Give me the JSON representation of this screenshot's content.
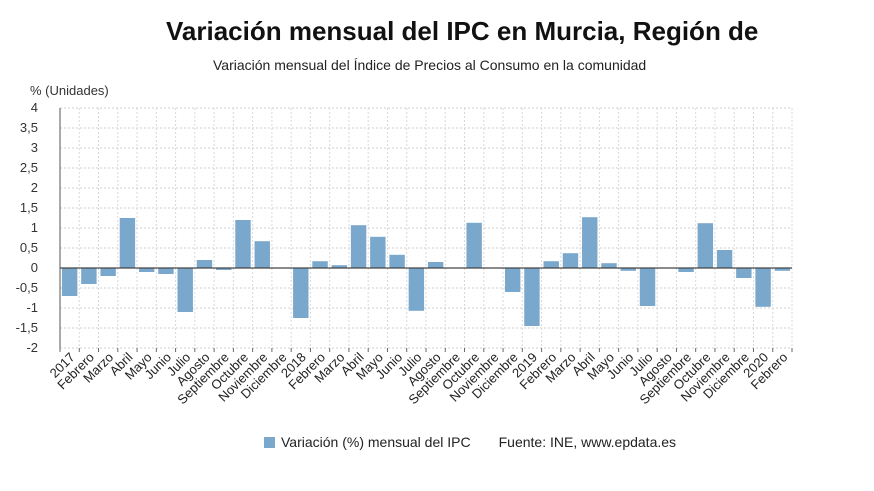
{
  "title": "Variación mensual del IPC en Murcia, Región de",
  "subtitle": "Variación mensual del Índice de Precios al Consumo en la comunidad",
  "source": "Fuente: INE, www.epdata.es",
  "chart_data": {
    "type": "bar",
    "ylabel": "% (Unidades)",
    "ylim": [
      -2,
      4
    ],
    "yticks": [
      {
        "value": 4,
        "label": "4"
      },
      {
        "value": 3.5,
        "label": "3,5"
      },
      {
        "value": 3,
        "label": "3"
      },
      {
        "value": 2.5,
        "label": "2,5"
      },
      {
        "value": 2,
        "label": "2"
      },
      {
        "value": 1.5,
        "label": "1,5"
      },
      {
        "value": 1,
        "label": "1"
      },
      {
        "value": 0.5,
        "label": "0,5"
      },
      {
        "value": 0,
        "label": "0"
      },
      {
        "value": -0.5,
        "label": "-0,5"
      },
      {
        "value": -1,
        "label": "-1"
      },
      {
        "value": -1.5,
        "label": "-1,5"
      },
      {
        "value": -2,
        "label": "-2"
      }
    ],
    "grid": true,
    "legend": "bottom",
    "bar_color": "#7aa7cc",
    "categories": [
      "2017",
      "Febrero",
      "Marzo",
      "Abril",
      "Mayo",
      "Junio",
      "Julio",
      "Agosto",
      "Septiembre",
      "Octubre",
      "Noviembre",
      "Diciembre",
      "2018",
      "Febrero",
      "Marzo",
      "Abril",
      "Mayo",
      "Junio",
      "Julio",
      "Agosto",
      "Septiembre",
      "Octubre",
      "Noviembre",
      "Diciembre",
      "2019",
      "Febrero",
      "Marzo",
      "Abril",
      "Mayo",
      "Junio",
      "Julio",
      "Agosto",
      "Septiembre",
      "Octubre",
      "Noviembre",
      "Diciembre",
      "2020",
      "Febrero"
    ],
    "series": [
      {
        "name": "Variación (%) mensual del IPC",
        "values": [
          -0.7,
          -0.4,
          -0.2,
          1.25,
          -0.1,
          -0.15,
          -1.1,
          0.2,
          -0.05,
          1.2,
          0.67,
          0,
          -1.25,
          0.17,
          0.07,
          1.07,
          0.78,
          0.33,
          -1.07,
          0.15,
          0,
          1.13,
          0,
          -0.6,
          -1.45,
          0.17,
          0.37,
          1.27,
          0.12,
          -0.07,
          -0.95,
          0,
          -0.1,
          1.12,
          0.45,
          -0.25,
          -0.97,
          -0.07
        ]
      }
    ]
  }
}
